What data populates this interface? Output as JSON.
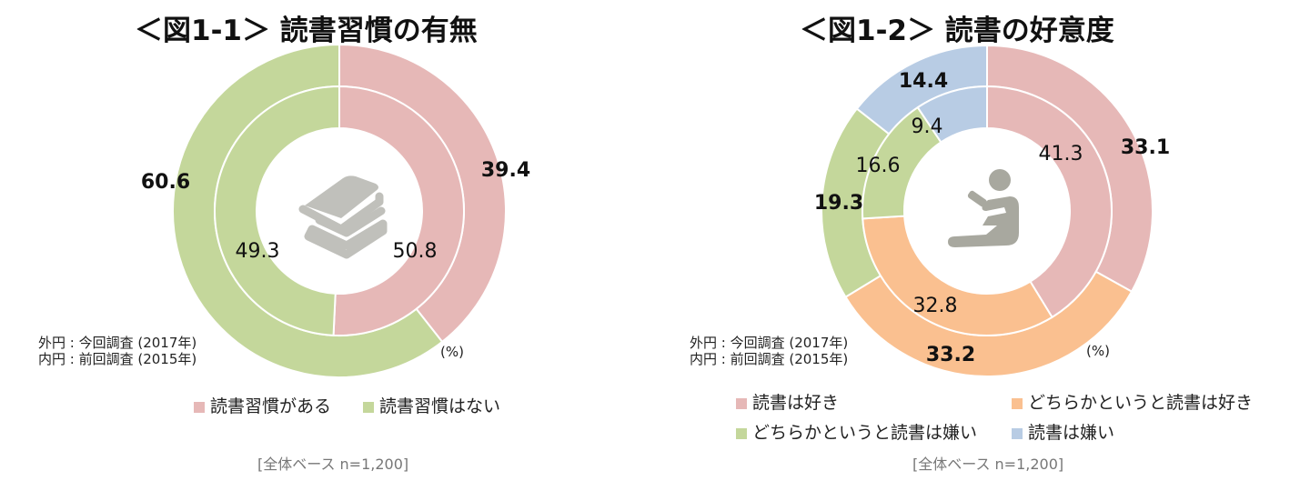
{
  "chart_data": [
    {
      "type": "pie",
      "subtype": "double-donut",
      "title": "＜図1-1＞ 読書習慣の有無",
      "categories": [
        "読書習慣がある",
        "読書習慣はない"
      ],
      "colors": [
        "#e6b8b7",
        "#c4d79b"
      ],
      "series": [
        {
          "name": "外円：今回調査 (2017年)",
          "ring": "outer",
          "values": [
            39.4,
            60.6
          ],
          "labels": [
            "39.4",
            "60.6"
          ]
        },
        {
          "name": "内円：前回調査 (2015年)",
          "ring": "inner",
          "values": [
            50.8,
            49.3
          ],
          "labels": [
            "50.8",
            "49.3"
          ]
        }
      ],
      "unit": "(%)",
      "ring_note": [
        "外円 : 今回調査 (2017年)",
        "内円 : 前回調査 (2015年)"
      ],
      "base_note": "[全体ベース n=1,200]",
      "center_icon": "stacked-books-icon",
      "legend_position": "bottom"
    },
    {
      "type": "pie",
      "subtype": "double-donut",
      "title": "＜図1-2＞ 読書の好意度",
      "categories": [
        "読書は好き",
        "どちらかというと読書は好き",
        "どちらかというと読書は嫌い",
        "読書は嫌い"
      ],
      "colors": [
        "#e6b8b7",
        "#fac090",
        "#c4d79b",
        "#b8cce4"
      ],
      "series": [
        {
          "name": "外円：今回調査 (2017年)",
          "ring": "outer",
          "values": [
            33.1,
            33.2,
            19.3,
            14.4
          ],
          "labels": [
            "33.1",
            "33.2",
            "19.3",
            "14.4"
          ]
        },
        {
          "name": "内円：前回調査 (2015年)",
          "ring": "inner",
          "values": [
            41.3,
            32.8,
            16.6,
            9.4
          ],
          "labels": [
            "41.3",
            "32.8",
            "16.6",
            "9.4"
          ]
        }
      ],
      "unit": "(%)",
      "ring_note": [
        "外円 : 今回調査 (2017年)",
        "内円 : 前回調査 (2015年)"
      ],
      "base_note": "[全体ベース n=1,200]",
      "center_icon": "person-reading-icon",
      "legend_position": "bottom"
    }
  ]
}
